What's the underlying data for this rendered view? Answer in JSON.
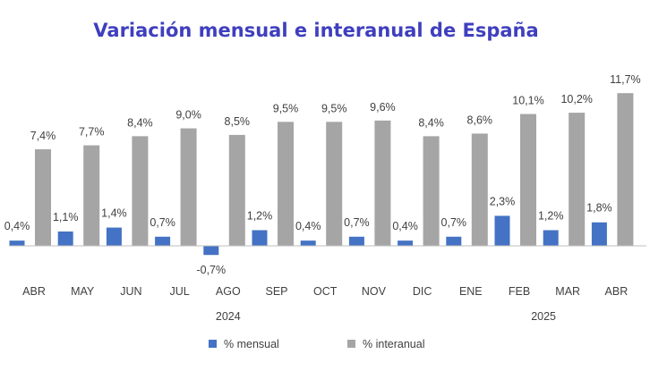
{
  "chart_data": {
    "type": "bar",
    "title": "Variación mensual e interanual de España",
    "categories": [
      "ABR",
      "MAY",
      "JUN",
      "JUL",
      "AGO",
      "SEP",
      "OCT",
      "NOV",
      "DIC",
      "ENE",
      "FEB",
      "MAR",
      "ABR"
    ],
    "year_groups": [
      {
        "label": "2024",
        "start": 0,
        "end": 8
      },
      {
        "label": "2025",
        "start": 9,
        "end": 12
      }
    ],
    "series": [
      {
        "name": "% mensual",
        "color": "#4472C4",
        "values": [
          0.4,
          1.1,
          1.4,
          0.7,
          -0.7,
          1.2,
          0.4,
          0.7,
          0.4,
          0.7,
          2.3,
          1.2,
          1.8
        ],
        "labels": [
          "0,4%",
          "1,1%",
          "1,4%",
          "0,7%",
          "-0,7%",
          "1,2%",
          "0,4%",
          "0,7%",
          "0,4%",
          "0,7%",
          "2,3%",
          "1,2%",
          "1,8%"
        ]
      },
      {
        "name": "% interanual",
        "color": "#A5A5A5",
        "values": [
          7.4,
          7.7,
          8.4,
          9.0,
          8.5,
          9.5,
          9.5,
          9.6,
          8.4,
          8.6,
          10.1,
          10.2,
          11.7
        ],
        "labels": [
          "7,4%",
          "7,7%",
          "8,4%",
          "9,0%",
          "8,5%",
          "9,5%",
          "9,5%",
          "9,6%",
          "8,4%",
          "8,6%",
          "10,1%",
          "10,2%",
          "11,7%"
        ]
      }
    ],
    "title_color": "#3F3FBF",
    "legend_position": "bottom",
    "ylim": [
      -1,
      12
    ]
  }
}
